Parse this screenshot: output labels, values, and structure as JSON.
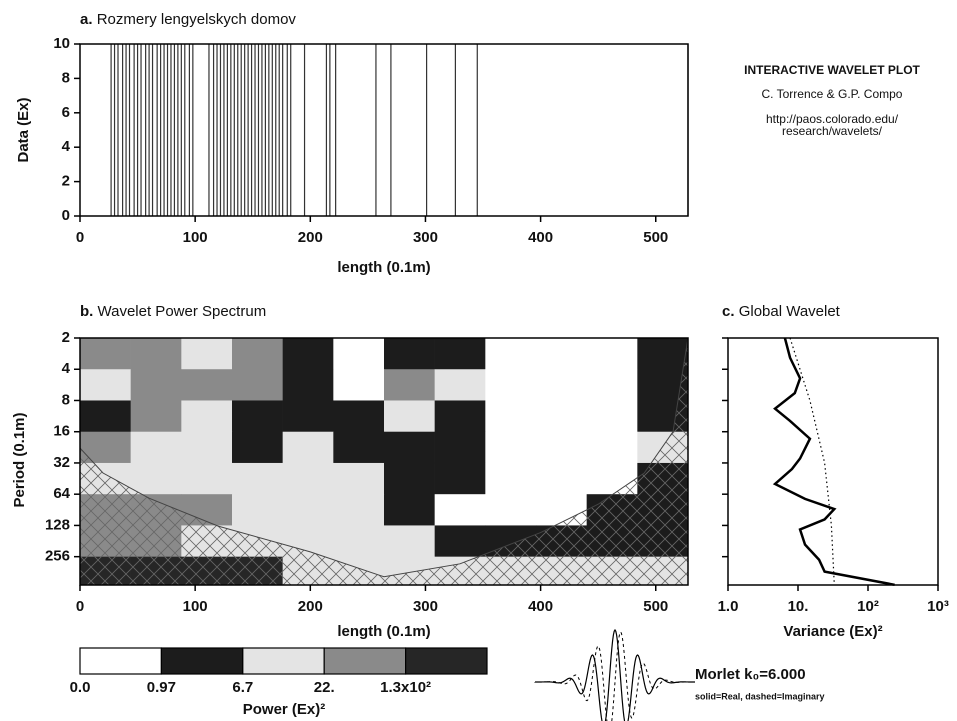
{
  "credits": {
    "title": "INTERACTIVE WAVELET PLOT",
    "authors": "C. Torrence & G.P. Compo",
    "url_line1": "http://paos.colorado.edu/",
    "url_line2": "research/wavelets/"
  },
  "chart_data": [
    {
      "type": "spike",
      "panel_label": "a.",
      "title": "Rozmery lengyelskych domov",
      "ylabel": "Data (Ex)",
      "xlabel": "length (0.1m)",
      "x": [
        27,
        30,
        33,
        37,
        40,
        43,
        47,
        50,
        53,
        57,
        60,
        63,
        67,
        70,
        73,
        76,
        79,
        82,
        85,
        88,
        91,
        95,
        98,
        112,
        116,
        119,
        122,
        125,
        128,
        131,
        134,
        137,
        140,
        143,
        146,
        149,
        152,
        155,
        158,
        161,
        164,
        167,
        170,
        173,
        176,
        180,
        183,
        195,
        214,
        217,
        222,
        257,
        270,
        301,
        326,
        345,
        528
      ],
      "values": [
        10,
        10,
        10,
        10,
        10,
        10,
        10,
        10,
        10,
        10,
        10,
        10,
        10,
        10,
        10,
        10,
        10,
        10,
        10,
        10,
        10,
        10,
        10,
        10,
        10,
        10,
        10,
        10,
        10,
        10,
        10,
        10,
        10,
        10,
        10,
        10,
        10,
        10,
        10,
        10,
        10,
        10,
        10,
        10,
        10,
        10,
        10,
        10,
        10,
        10,
        10,
        10,
        10,
        10,
        10,
        10,
        10
      ],
      "color": "#333333",
      "xlim": [
        0,
        528
      ],
      "ylim": [
        0,
        10
      ],
      "xticks": [
        0,
        100,
        200,
        300,
        400,
        500
      ],
      "yticks": [
        0,
        2,
        4,
        6,
        8,
        10
      ]
    },
    {
      "type": "heatmap",
      "panel_label": "b.",
      "title": "Wavelet Power Spectrum",
      "ylabel": "Period (0.1m)",
      "xlabel": "length (0.1m)",
      "x_edges": [
        0,
        44,
        88,
        132,
        176,
        220,
        264,
        308,
        352,
        396,
        440,
        484,
        528
      ],
      "period_edges": [
        2,
        4,
        8,
        16,
        32,
        64,
        128,
        256,
        480
      ],
      "z": [
        [
          50,
          50,
          12,
          50,
          3,
          0.5,
          3,
          3,
          0.5,
          0.5,
          0.5,
          3
        ],
        [
          12,
          50,
          50,
          50,
          3,
          0.5,
          50,
          12,
          0.5,
          0.5,
          0.5,
          3
        ],
        [
          3,
          50,
          12,
          3,
          3,
          3,
          12,
          3,
          0.5,
          0.5,
          0.5,
          3
        ],
        [
          50,
          12,
          12,
          3,
          12,
          3,
          3,
          3,
          0.5,
          0.5,
          0.5,
          12
        ],
        [
          12,
          12,
          12,
          12,
          12,
          12,
          3,
          3,
          0.5,
          0.5,
          0.5,
          3
        ],
        [
          50,
          50,
          50,
          12,
          12,
          12,
          3,
          0.5,
          0.5,
          0.5,
          3,
          3
        ],
        [
          50,
          50,
          12,
          12,
          12,
          12,
          12,
          3,
          3,
          3,
          3,
          3
        ],
        [
          200,
          200,
          200,
          200,
          12,
          12,
          12,
          12,
          12,
          12,
          12,
          12
        ]
      ],
      "xlim": [
        0,
        528
      ],
      "ylim": [
        2,
        480
      ],
      "y_log": true,
      "xticks": [
        0,
        100,
        200,
        300,
        400,
        500
      ],
      "yticks": [
        2,
        4,
        8,
        16,
        32,
        64,
        128,
        256
      ],
      "coi": {
        "x": [
          0,
          20,
          60,
          120,
          200,
          264,
          330,
          400,
          450,
          490,
          515,
          528
        ],
        "period": [
          23,
          40,
          70,
          130,
          230,
          400,
          300,
          150,
          80,
          40,
          16,
          2
        ]
      },
      "levels": [
        {
          "value": 0,
          "label": "0.0"
        },
        0.97,
        6.7,
        {
          "value": 22,
          "label": "22."
        },
        {
          "value": 130,
          "label": "1.3x10²"
        }
      ],
      "colors": [
        "#ffffff",
        "#1c1c1c",
        "#e4e4e4",
        "#8a8a8a",
        "#262626"
      ],
      "colorbar_label": "Power (Ex)²"
    },
    {
      "type": "line",
      "panel_label": "c.",
      "title": "Global Wavelet",
      "xlabel": "Variance (Ex)²",
      "x_log": true,
      "xlim": [
        1,
        1000
      ],
      "ylim": [
        2,
        480
      ],
      "xticks": [
        {
          "value": 1,
          "label": "1.0"
        },
        {
          "value": 10,
          "label": "10."
        },
        {
          "value": 100,
          "label": "10²"
        },
        {
          "value": 1000,
          "label": "10³"
        }
      ],
      "yticks": [
        2,
        4,
        8,
        16,
        32,
        64,
        128,
        256
      ],
      "series": [
        {
          "style": "solid",
          "color": "#000000",
          "period": [
            2,
            3.1,
            4.9,
            6.8,
            9.6,
            12.6,
            18.7,
            29,
            36.6,
            51,
            71,
            89,
            112,
            140,
            196,
            274,
            357,
            478
          ],
          "values": [
            6.5,
            7.7,
            10.7,
            9,
            4.7,
            7.7,
            14.8,
            10.7,
            8.2,
            4.7,
            12.6,
            33,
            24,
            10.7,
            12.6,
            20,
            24,
            240
          ]
        },
        {
          "style": "dotted",
          "color": "#000000",
          "period": [
            2,
            8,
            32,
            128,
            478
          ],
          "values": [
            7.7,
            14.8,
            24,
            30,
            33
          ]
        }
      ]
    }
  ],
  "morlet": {
    "label": "Morlet k₀=6.000",
    "note": "solid=Real, dashed=Imaginary"
  }
}
